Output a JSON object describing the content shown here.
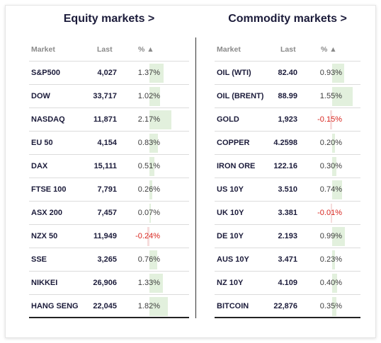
{
  "equity": {
    "title": "Equity markets >",
    "headers": {
      "market": "Market",
      "last": "Last",
      "pct": "% ▲"
    },
    "rows": [
      {
        "market": "S&P500",
        "last": "4,027",
        "pct": "1.37%",
        "pct_value": 1.37
      },
      {
        "market": "DOW",
        "last": "33,717",
        "pct": "1.02%",
        "pct_value": 1.02
      },
      {
        "market": "NASDAQ",
        "last": "11,871",
        "pct": "2.17%",
        "pct_value": 2.17
      },
      {
        "market": "EU 50",
        "last": "4,154",
        "pct": "0.83%",
        "pct_value": 0.83
      },
      {
        "market": "DAX",
        "last": "15,111",
        "pct": "0.51%",
        "pct_value": 0.51
      },
      {
        "market": "FTSE 100",
        "last": "7,791",
        "pct": "0.26%",
        "pct_value": 0.26
      },
      {
        "market": "ASX 200",
        "last": "7,457",
        "pct": "0.07%",
        "pct_value": 0.07
      },
      {
        "market": "NZX 50",
        "last": "11,949",
        "pct": "-0.24%",
        "pct_value": -0.24
      },
      {
        "market": "SSE",
        "last": "3,265",
        "pct": "0.76%",
        "pct_value": 0.76
      },
      {
        "market": "NIKKEI",
        "last": "26,906",
        "pct": "1.33%",
        "pct_value": 1.33
      },
      {
        "market": "HANG SENG",
        "last": "22,045",
        "pct": "1.82%",
        "pct_value": 1.82
      }
    ]
  },
  "commodity": {
    "title": "Commodity markets >",
    "headers": {
      "market": "Market",
      "last": "Last",
      "pct": "% ▲"
    },
    "rows": [
      {
        "market": "OIL (WTI)",
        "last": "82.40",
        "pct": "0.93%",
        "pct_value": 0.93
      },
      {
        "market": "OIL (BRENT)",
        "last": "88.99",
        "pct": "1.55%",
        "pct_value": 1.55
      },
      {
        "market": "GOLD",
        "last": "1,923",
        "pct": "-0.15%",
        "pct_value": -0.15
      },
      {
        "market": "COPPER",
        "last": "4.2598",
        "pct": "0.20%",
        "pct_value": 0.2
      },
      {
        "market": "IRON ORE",
        "last": "122.16",
        "pct": "0.30%",
        "pct_value": 0.3
      },
      {
        "market": "US 10Y",
        "last": "3.510",
        "pct": "0.74%",
        "pct_value": 0.74
      },
      {
        "market": "UK 10Y",
        "last": "3.381",
        "pct": "-0.01%",
        "pct_value": -0.01
      },
      {
        "market": "DE 10Y",
        "last": "2.193",
        "pct": "0.99%",
        "pct_value": 0.99
      },
      {
        "market": "AUS 10Y",
        "last": "3.471",
        "pct": "0.23%",
        "pct_value": 0.23
      },
      {
        "market": "NZ 10Y",
        "last": "4.109",
        "pct": "0.40%",
        "pct_value": 0.4
      },
      {
        "market": "BITCOIN",
        "last": "22,876",
        "pct": "0.35%",
        "pct_value": 0.35
      }
    ]
  },
  "colors": {
    "positive_bar": "#e2f0dd",
    "negative_bar": "#f6dcdc",
    "negative_text": "#d8261f",
    "title": "#1b1b3a"
  }
}
